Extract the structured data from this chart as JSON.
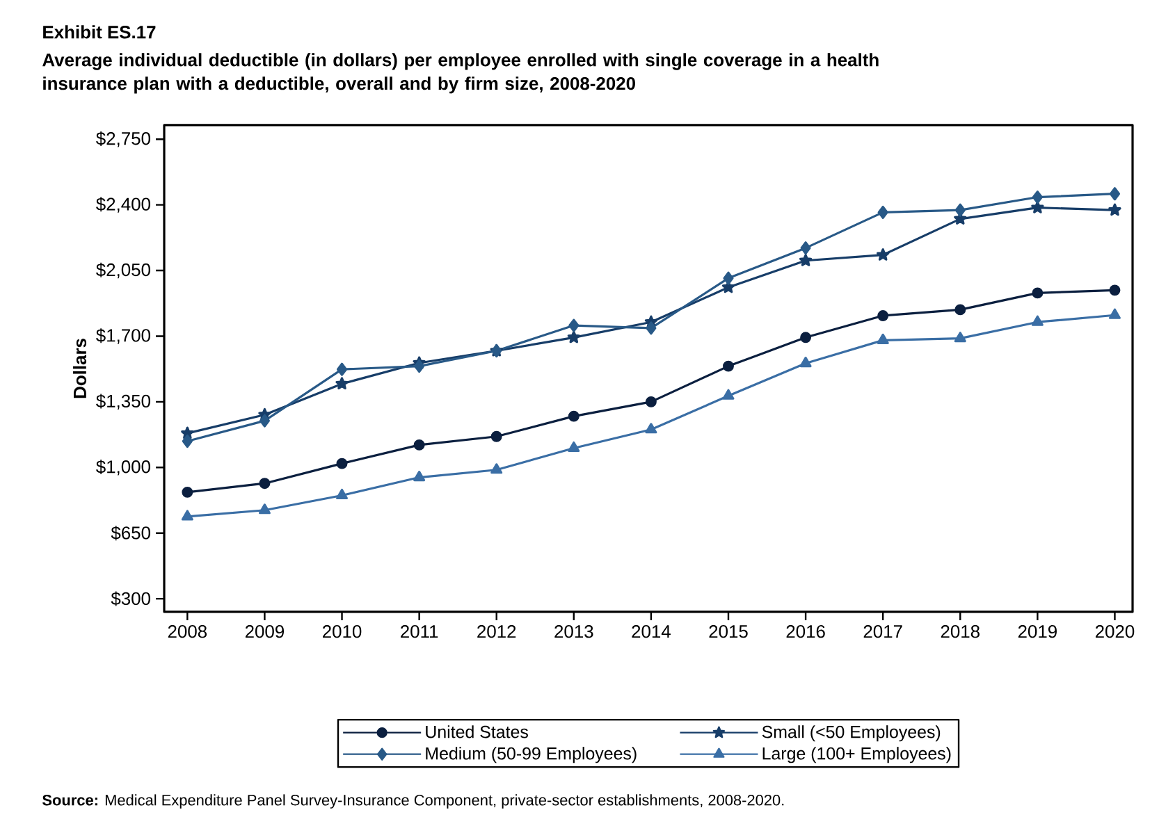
{
  "chart_data": {
    "type": "line",
    "title": "Exhibit ES.17",
    "subtitle": "Average individual deductible (in dollars) per employee enrolled with single coverage in a health insurance plan with a deductible, overall and by firm size, 2008-2020",
    "ylabel": "Dollars",
    "annotations": [
      "**Source:** Medical Expenditure Panel Survey-Insurance Component, private-sector establishments, 2008-2020."
    ],
    "x": [
      2008,
      2009,
      2010,
      2011,
      2012,
      2013,
      2014,
      2015,
      2016,
      2017,
      2018,
      2019,
      2020
    ],
    "xlim": [
      2007.7,
      2020.23
    ],
    "xticks": [
      2008,
      2009,
      2010,
      2011,
      2012,
      2013,
      2014,
      2015,
      2016,
      2017,
      2018,
      2019,
      2020
    ],
    "ylim": [
      230,
      2825
    ],
    "yticks": [
      {
        "value": 300,
        "label": "$300"
      },
      {
        "value": 650,
        "label": "$650"
      },
      {
        "value": 1000,
        "label": "$1,000"
      },
      {
        "value": 1350,
        "label": "$1,350"
      },
      {
        "value": 1700,
        "label": "$1,700"
      },
      {
        "value": 2050,
        "label": "$2,050"
      },
      {
        "value": 2400,
        "label": "$2,400"
      },
      {
        "value": 2750,
        "label": "$2,750"
      }
    ],
    "legend": "bottom",
    "series": [
      {
        "name": "United States",
        "color": "#0b1f3f",
        "marker": "circle",
        "values": [
          868,
          915,
          1021,
          1120,
          1165,
          1273,
          1350,
          1540,
          1693,
          1809,
          1841,
          1930,
          1945
        ]
      },
      {
        "name": "Small (<50 Employees)",
        "color": "#173d68",
        "marker": "star",
        "values": [
          1182,
          1281,
          1446,
          1557,
          1622,
          1693,
          1775,
          1960,
          2103,
          2133,
          2325,
          2385,
          2372
        ]
      },
      {
        "name": "Medium (50-99 Employees)",
        "color": "#285987",
        "marker": "diamond",
        "values": [
          1140,
          1249,
          1523,
          1540,
          1622,
          1757,
          1743,
          2009,
          2170,
          2360,
          2372,
          2441,
          2459
        ]
      },
      {
        "name": "Large (100+ Employees)",
        "color": "#3a6ea5",
        "marker": "triangle",
        "values": [
          738,
          772,
          851,
          947,
          987,
          1103,
          1202,
          1382,
          1555,
          1678,
          1688,
          1775,
          1812
        ]
      }
    ]
  }
}
